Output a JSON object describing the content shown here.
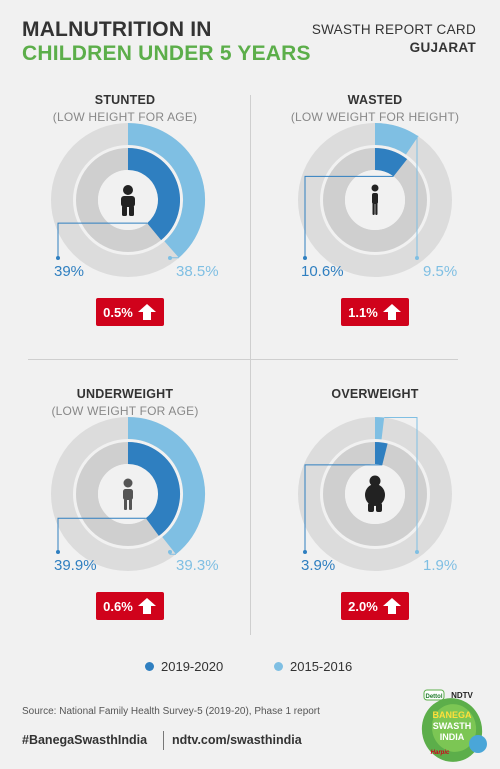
{
  "header": {
    "title_line1": "MALNUTRITION IN",
    "title_line2": "CHILDREN UNDER 5 YEARS",
    "report_line1": "SWASTH REPORT CARD",
    "report_line2": "GUJARAT"
  },
  "colors": {
    "series_2019": "#2f7fc0",
    "series_2015": "#7fbfe3",
    "ring_outer": "#dcdcdc",
    "ring_inner": "#cfcfcf",
    "badge": "#d0021b",
    "title_green": "#5cae4a"
  },
  "chart_data": [
    {
      "type": "donut",
      "title": "STUNTED",
      "subtitle": "(LOW HEIGHT FOR AGE)",
      "icon": "child-icon",
      "series": [
        {
          "name": "2019-2020",
          "value": 39,
          "label": "39%"
        },
        {
          "name": "2015-2016",
          "value": 38.5,
          "label": "38.5%"
        }
      ],
      "change_label": "0.5%",
      "change_direction": "up"
    },
    {
      "type": "donut",
      "title": "WASTED",
      "subtitle": "(LOW WEIGHT FOR HEIGHT)",
      "icon": "thin-child-icon",
      "series": [
        {
          "name": "2019-2020",
          "value": 10.6,
          "label": "10.6%"
        },
        {
          "name": "2015-2016",
          "value": 9.5,
          "label": "9.5%"
        }
      ],
      "change_label": "1.1%",
      "change_direction": "up"
    },
    {
      "type": "donut",
      "title": "UNDERWEIGHT",
      "subtitle": "(LOW WEIGHT FOR AGE)",
      "icon": "underweight-child-icon",
      "series": [
        {
          "name": "2019-2020",
          "value": 39.9,
          "label": "39.9%"
        },
        {
          "name": "2015-2016",
          "value": 39.3,
          "label": "39.3%"
        }
      ],
      "change_label": "0.6%",
      "change_direction": "up"
    },
    {
      "type": "donut",
      "title": "OVERWEIGHT",
      "subtitle": "",
      "icon": "overweight-child-icon",
      "series": [
        {
          "name": "2019-2020",
          "value": 3.9,
          "label": "3.9%"
        },
        {
          "name": "2015-2016",
          "value": 1.9,
          "label": "1.9%"
        }
      ],
      "change_label": "2.0%",
      "change_direction": "up"
    }
  ],
  "legend": [
    {
      "label": "2019-2020",
      "color": "#2f7fc0"
    },
    {
      "label": "2015-2016",
      "color": "#7fbfe3"
    }
  ],
  "footer": {
    "source": "Source: National Family Health Survey-5 (2019-20), Phase 1 report",
    "hashtag": "#BanegaSwasthIndia",
    "website": "ndtv.com/swasthindia",
    "logo_text": {
      "brand1": "Dettol",
      "brand2": "NDTV",
      "line1": "BANEGA",
      "line2": "SWASTH",
      "line3": "INDIA",
      "brand3": "Harpic"
    }
  }
}
